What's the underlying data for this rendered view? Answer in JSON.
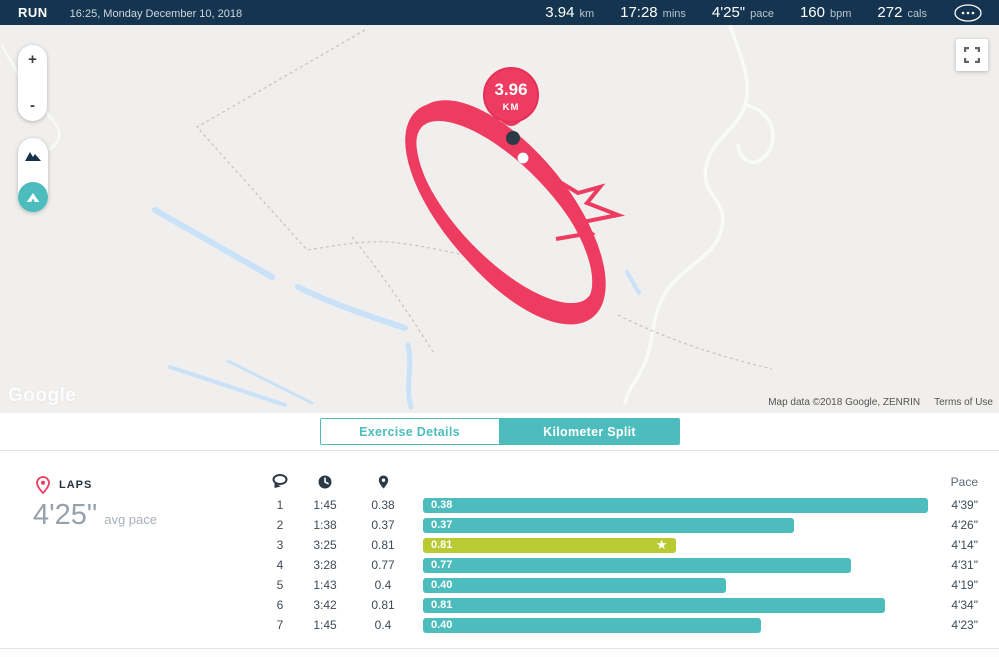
{
  "header": {
    "activity": "RUN",
    "datetime": "16:25, Monday December 10, 2018",
    "stats": [
      {
        "value": "3.94",
        "unit": "km"
      },
      {
        "value": "17:28",
        "unit": "mins"
      },
      {
        "value": "4'25\"",
        "unit": "pace"
      },
      {
        "value": "160",
        "unit": "bpm"
      },
      {
        "value": "272",
        "unit": "cals"
      }
    ]
  },
  "map": {
    "marker": {
      "value": "3.96",
      "unit": "KM"
    },
    "controls": {
      "zoom_in": "+",
      "zoom_out": "-"
    },
    "watermark": "Google",
    "attribution": "Map data ©2018 Google, ZENRIN",
    "terms": "Terms of Use",
    "colors": {
      "route": "#ee3b60",
      "background": "#f0efed",
      "water": "#c9e2f8"
    }
  },
  "tabs": [
    {
      "label": "Exercise Details",
      "active": false
    },
    {
      "label": "Kilometer Split",
      "active": true
    }
  ],
  "laps": {
    "title": "LAPS",
    "avg_pace": "4'25\"",
    "avg_pace_label": "avg pace",
    "pace_header": "Pace",
    "column_icons": [
      "lap-icon",
      "time-icon",
      "distance-icon"
    ],
    "rows": [
      {
        "lap": "1",
        "time": "1:45",
        "distance": "0.38",
        "bar_label": "0.38",
        "bar_pct": 100,
        "pace": "4'39\"",
        "best": false
      },
      {
        "lap": "2",
        "time": "1:38",
        "distance": "0.37",
        "bar_label": "0.37",
        "bar_pct": 73.5,
        "pace": "4'26\"",
        "best": false
      },
      {
        "lap": "3",
        "time": "3:25",
        "distance": "0.81",
        "bar_label": "0.81",
        "bar_pct": 50,
        "pace": "4'14\"",
        "best": true
      },
      {
        "lap": "4",
        "time": "3:28",
        "distance": "0.77",
        "bar_label": "0.77",
        "bar_pct": 84.7,
        "pace": "4'31\"",
        "best": false
      },
      {
        "lap": "5",
        "time": "1:43",
        "distance": "0.4",
        "bar_label": "0.40",
        "bar_pct": 60,
        "pace": "4'19\"",
        "best": false
      },
      {
        "lap": "6",
        "time": "3:42",
        "distance": "0.81",
        "bar_label": "0.81",
        "bar_pct": 91.5,
        "pace": "4'34\"",
        "best": false
      },
      {
        "lap": "7",
        "time": "1:45",
        "distance": "0.4",
        "bar_label": "0.40",
        "bar_pct": 67,
        "pace": "4'23\"",
        "best": false
      }
    ],
    "colors": {
      "bar": "#4cbcbd",
      "best_bar": "#b9ca33",
      "accent_navy": "#14344f"
    }
  }
}
